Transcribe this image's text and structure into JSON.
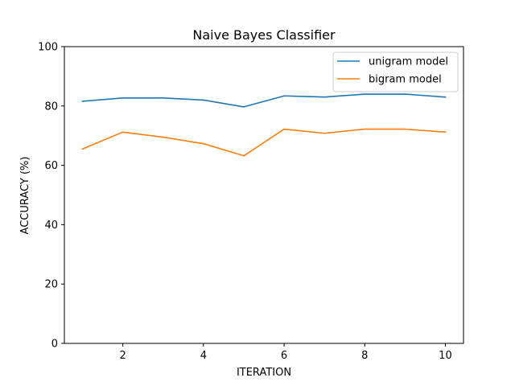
{
  "chart_data": {
    "type": "line",
    "title": "Naive Bayes Classifier",
    "xlabel": "ITERATION",
    "ylabel": "ACCURACY (%)",
    "x": [
      1,
      2,
      3,
      4,
      5,
      6,
      7,
      8,
      9,
      10
    ],
    "xlim": [
      0.55,
      10.45
    ],
    "ylim": [
      0,
      100
    ],
    "xticks": [
      2,
      4,
      6,
      8,
      10
    ],
    "yticks": [
      0,
      20,
      40,
      60,
      80,
      100
    ],
    "grid": false,
    "legend_position": "upper-right",
    "series": [
      {
        "name": "unigram model",
        "color": "#1f77b4",
        "values": [
          81.6,
          82.7,
          82.7,
          82.0,
          79.7,
          83.4,
          83.0,
          84.0,
          84.0,
          83.0
        ]
      },
      {
        "name": "bigram model",
        "color": "#ff7f0e",
        "values": [
          65.5,
          71.2,
          69.5,
          67.3,
          63.2,
          72.2,
          70.8,
          72.2,
          72.2,
          71.2
        ]
      }
    ]
  }
}
